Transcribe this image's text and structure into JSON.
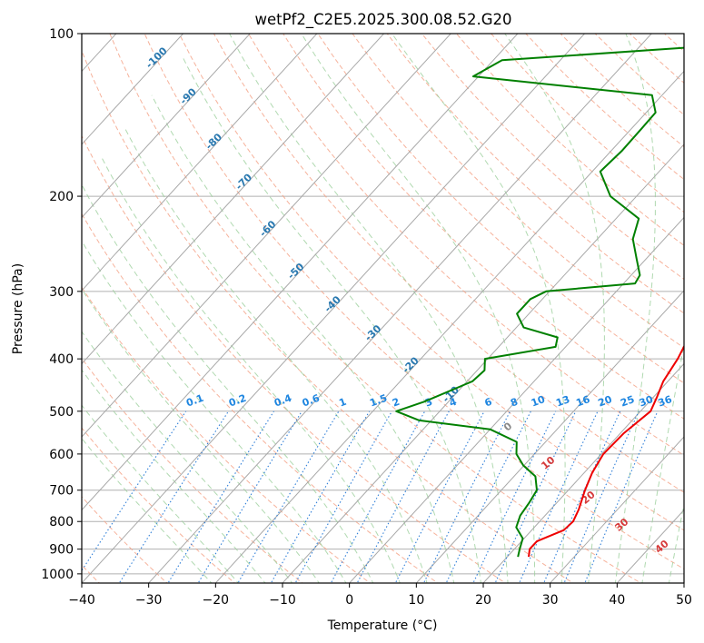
{
  "chart_data": {
    "type": "skew-t",
    "title": "wetPf2_C2E5.2025.300.08.52.G20",
    "xlabel": "Temperature (°C)",
    "ylabel": "Pressure (hPa)",
    "xlim": [
      -40,
      50
    ],
    "ylim": [
      1040,
      100
    ],
    "x_ticks": [
      "-40",
      "-30",
      "-20",
      "-10",
      "0",
      "10",
      "20",
      "30",
      "40",
      "50"
    ],
    "y_ticks": [
      "100",
      "200",
      "300",
      "400",
      "500",
      "600",
      "700",
      "800",
      "900",
      "1000"
    ],
    "isotherm_labels": [
      "-100",
      "-90",
      "-80",
      "-70",
      "-60",
      "-50",
      "-40",
      "-30",
      "-20",
      "-10"
    ],
    "mixing_ratio_labels": [
      "0.1",
      "0.2",
      "0.4",
      "0.6",
      "1",
      "1.5",
      "2",
      "3",
      "4",
      "6",
      "8",
      "10",
      "13",
      "16",
      "20",
      "25",
      "30",
      "36"
    ],
    "moist_adiabat_labels": [
      "0",
      "10",
      "20",
      "30",
      "40"
    ],
    "series": [
      {
        "name": "temperature",
        "color": "#ee0000",
        "points": [
          {
            "p": 930,
            "t": 23.2
          },
          {
            "p": 900,
            "t": 22.3
          },
          {
            "p": 870,
            "t": 22.3
          },
          {
            "p": 830,
            "t": 24.8
          },
          {
            "p": 800,
            "t": 25.0
          },
          {
            "p": 760,
            "t": 24.2
          },
          {
            "p": 700,
            "t": 22.5
          },
          {
            "p": 650,
            "t": 21.2
          },
          {
            "p": 600,
            "t": 20.3
          },
          {
            "p": 550,
            "t": 20.5
          },
          {
            "p": 500,
            "t": 21.5
          },
          {
            "p": 470,
            "t": 20.5
          },
          {
            "p": 440,
            "t": 19.3
          },
          {
            "p": 400,
            "t": 18.4
          },
          {
            "p": 370,
            "t": 17.3
          },
          {
            "p": 340,
            "t": 15.9
          },
          {
            "p": 300,
            "t": 14.2
          },
          {
            "p": 280,
            "t": 13.5
          },
          {
            "p": 260,
            "t": 11.2
          },
          {
            "p": 240,
            "t": 8.6
          },
          {
            "p": 220,
            "t": 5.4
          },
          {
            "p": 200,
            "t": 2.4
          },
          {
            "p": 180,
            "t": -0.8
          },
          {
            "p": 165,
            "t": -2.8
          },
          {
            "p": 150,
            "t": -5.0
          },
          {
            "p": 140,
            "t": -7.4
          },
          {
            "p": 130,
            "t": -9.3
          },
          {
            "p": 120,
            "t": -5.4
          },
          {
            "p": 110,
            "t": -5.8
          },
          {
            "p": 100,
            "t": -10.5
          }
        ]
      },
      {
        "name": "dewpoint",
        "color": "#008000",
        "points": [
          {
            "p": 930,
            "t": 21.6
          },
          {
            "p": 900,
            "t": 20.8
          },
          {
            "p": 860,
            "t": 19.8
          },
          {
            "p": 820,
            "t": 17.3
          },
          {
            "p": 780,
            "t": 16.3
          },
          {
            "p": 740,
            "t": 15.9
          },
          {
            "p": 700,
            "t": 15.3
          },
          {
            "p": 660,
            "t": 13.2
          },
          {
            "p": 630,
            "t": 9.9
          },
          {
            "p": 600,
            "t": 7.3
          },
          {
            "p": 570,
            "t": 5.7
          },
          {
            "p": 540,
            "t": 0.0
          },
          {
            "p": 520,
            "t": -11.8
          },
          {
            "p": 500,
            "t": -16.5
          },
          {
            "p": 480,
            "t": -13.6
          },
          {
            "p": 440,
            "t": -9.2
          },
          {
            "p": 420,
            "t": -8.9
          },
          {
            "p": 400,
            "t": -10.4
          },
          {
            "p": 380,
            "t": -1.5
          },
          {
            "p": 365,
            "t": -2.5
          },
          {
            "p": 350,
            "t": -8.9
          },
          {
            "p": 330,
            "t": -11.8
          },
          {
            "p": 310,
            "t": -11.8
          },
          {
            "p": 300,
            "t": -10.5
          },
          {
            "p": 290,
            "t": 1.7
          },
          {
            "p": 280,
            "t": 1.3
          },
          {
            "p": 260,
            "t": -1.6
          },
          {
            "p": 240,
            "t": -4.7
          },
          {
            "p": 220,
            "t": -6.6
          },
          {
            "p": 200,
            "t": -13.9
          },
          {
            "p": 180,
            "t": -18.8
          },
          {
            "p": 165,
            "t": -18.4
          },
          {
            "p": 150,
            "t": -18.5
          },
          {
            "p": 140,
            "t": -18.6
          },
          {
            "p": 130,
            "t": -21.5
          },
          {
            "p": 120,
            "t": -50.8
          },
          {
            "p": 112,
            "t": -48.7
          },
          {
            "p": 106,
            "t": -22.2
          },
          {
            "p": 100,
            "t": -16.0
          }
        ]
      }
    ]
  }
}
